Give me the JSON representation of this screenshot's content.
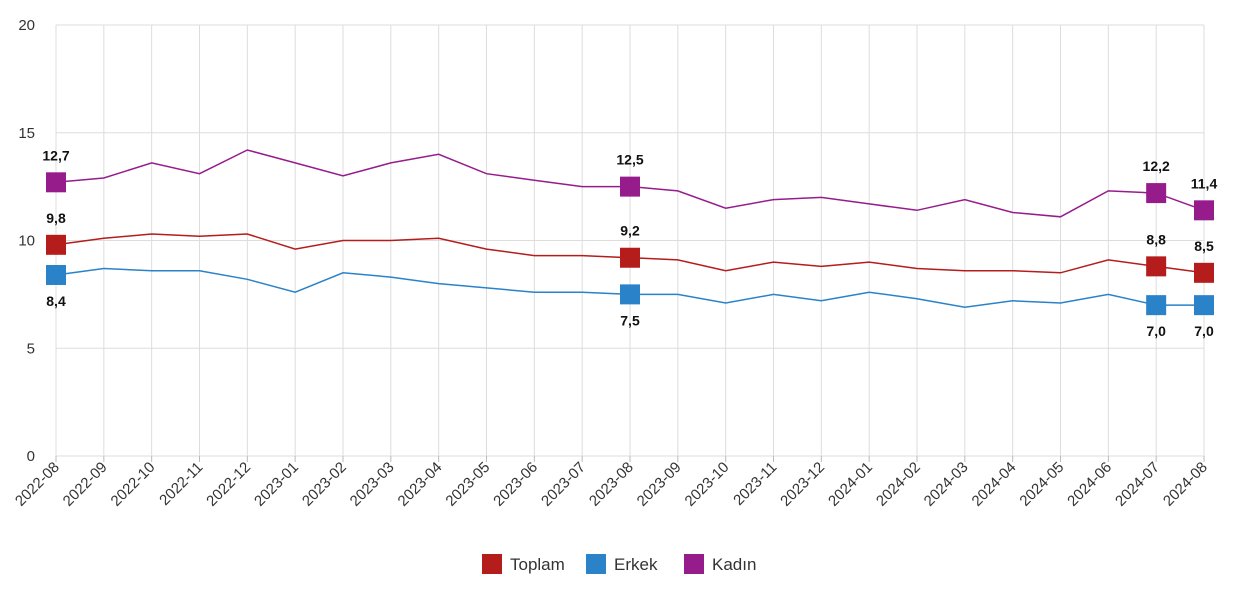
{
  "chart_data": {
    "type": "line",
    "title": "",
    "xlabel": "",
    "ylabel": "",
    "ylim": [
      0,
      20
    ],
    "yticks": [
      0,
      5,
      10,
      15,
      20
    ],
    "grid": true,
    "legend_position": "bottom-center",
    "categories": [
      "2022-08",
      "2022-09",
      "2022-10",
      "2022-11",
      "2022-12",
      "2023-01",
      "2023-02",
      "2023-03",
      "2023-04",
      "2023-05",
      "2023-06",
      "2023-07",
      "2023-08",
      "2023-09",
      "2023-10",
      "2023-11",
      "2023-12",
      "2024-01",
      "2024-02",
      "2024-03",
      "2024-04",
      "2024-05",
      "2024-06",
      "2024-07",
      "2024-08"
    ],
    "labeled_indices": [
      0,
      12,
      23,
      24
    ],
    "series": [
      {
        "name": "Toplam",
        "color": "#b51c1c",
        "label_pos": "above",
        "values": [
          9.8,
          10.1,
          10.3,
          10.2,
          10.3,
          9.6,
          10.0,
          10.0,
          10.1,
          9.6,
          9.3,
          9.3,
          9.2,
          9.1,
          8.6,
          9.0,
          8.8,
          9.0,
          8.7,
          8.6,
          8.6,
          8.5,
          9.1,
          8.8,
          8.5
        ]
      },
      {
        "name": "Erkek",
        "color": "#2a82c9",
        "label_pos": "below",
        "values": [
          8.4,
          8.7,
          8.6,
          8.6,
          8.2,
          7.6,
          8.5,
          8.3,
          8.0,
          7.8,
          7.6,
          7.6,
          7.5,
          7.5,
          7.1,
          7.5,
          7.2,
          7.6,
          7.3,
          6.9,
          7.2,
          7.1,
          7.5,
          7.0,
          7.0
        ]
      },
      {
        "name": "Kadın",
        "color": "#961c8c",
        "label_pos": "above",
        "values": [
          12.7,
          12.9,
          13.6,
          13.1,
          14.2,
          13.6,
          13.0,
          13.6,
          14.0,
          13.1,
          12.8,
          12.5,
          12.5,
          12.3,
          11.5,
          11.9,
          12.0,
          11.7,
          11.4,
          11.9,
          11.3,
          11.1,
          12.3,
          12.2,
          11.4
        ]
      }
    ]
  }
}
